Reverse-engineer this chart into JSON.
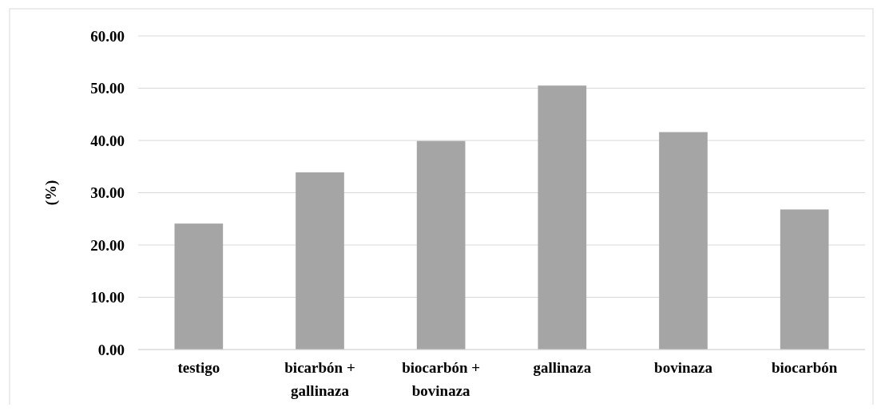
{
  "chart_data": {
    "type": "bar",
    "ylabel": "(%)",
    "categories": [
      "testigo",
      "bicarbón + gallinaza",
      "biocarbón + bovinaza",
      "gallinaza",
      "bovinaza",
      "biocarbón"
    ],
    "values": [
      24.1,
      33.9,
      39.9,
      50.5,
      41.6,
      26.8
    ],
    "color": "#a5a5a5",
    "ylim": [
      0,
      60
    ],
    "yticks": [
      {
        "value": 0,
        "label": "0.00"
      },
      {
        "value": 10,
        "label": "10.00"
      },
      {
        "value": 20,
        "label": "20.00"
      },
      {
        "value": 30,
        "label": "30.00"
      },
      {
        "value": 40,
        "label": "40.00"
      },
      {
        "value": 50,
        "label": "50.00"
      },
      {
        "value": 60,
        "label": "60.00"
      }
    ],
    "grid": "y"
  }
}
